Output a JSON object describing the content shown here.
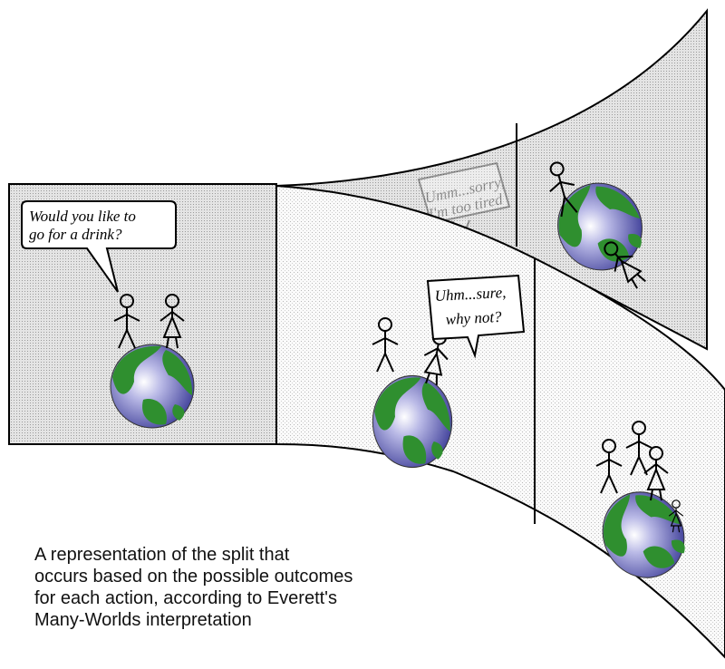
{
  "panels": [
    {
      "bubble": [
        "Would you like to",
        "go for a drink?"
      ]
    },
    {
      "bubble": [
        "Uhm...sure,",
        "why not?"
      ]
    },
    {
      "bubble": [
        "Umm...sorry,",
        "I'm too tired"
      ]
    }
  ],
  "caption": [
    "A representation of the split that",
    "occurs based on the possible outcomes",
    "for each action, according to Everett's",
    "Many-Worlds interpretation"
  ]
}
